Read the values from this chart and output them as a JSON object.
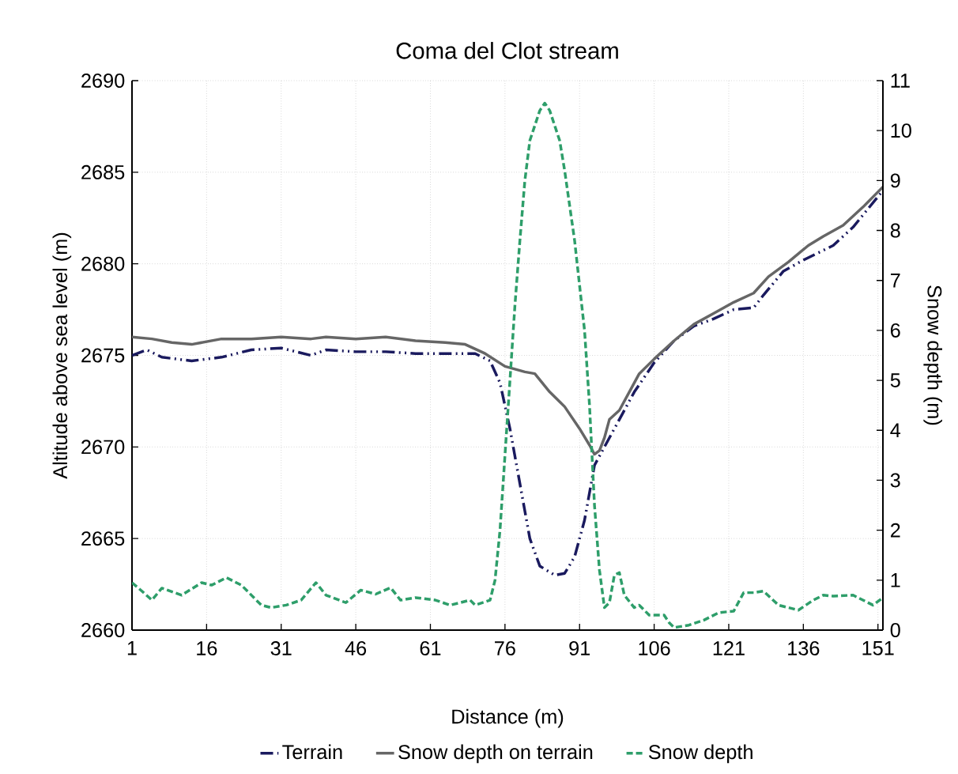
{
  "chart_data": {
    "type": "line",
    "title": "Coma del Clot stream",
    "xlabel": "Distance (m)",
    "ylabel": "Altitude above sea level (m)",
    "y2label": "Snow depth (m)",
    "xlim": [
      1,
      152
    ],
    "xticks": [
      1,
      16,
      31,
      46,
      61,
      76,
      91,
      106,
      121,
      136,
      151
    ],
    "ylim": [
      2660,
      2690
    ],
    "yticks": [
      2660,
      2665,
      2670,
      2675,
      2680,
      2685,
      2690
    ],
    "y2lim": [
      0,
      11
    ],
    "y2ticks": [
      0,
      1,
      2,
      3,
      4,
      5,
      6,
      7,
      8,
      9,
      10,
      11
    ],
    "grid": true,
    "legend": "bottom",
    "marker": "none",
    "series": [
      {
        "name": "Terrain",
        "color": "#1a1a5e",
        "line_style": "dashdotdotted",
        "x": [
          1,
          4,
          7,
          13,
          19,
          25,
          31,
          37,
          40,
          46,
          52,
          58,
          64,
          70,
          73,
          75,
          77,
          79,
          81,
          83,
          86,
          88,
          90,
          92,
          94,
          96,
          99,
          102,
          106,
          110,
          114,
          118,
          122,
          126,
          128,
          132,
          136,
          142,
          146,
          149,
          152
        ],
        "values": [
          2675.0,
          2675.3,
          2674.9,
          2674.7,
          2674.9,
          2675.3,
          2675.4,
          2675.0,
          2675.3,
          2675.2,
          2675.2,
          2675.1,
          2675.1,
          2675.1,
          2674.7,
          2673.5,
          2671.0,
          2668.0,
          2665.0,
          2663.5,
          2663.0,
          2663.1,
          2664.0,
          2666.0,
          2669.0,
          2670.0,
          2671.5,
          2673.0,
          2674.6,
          2675.8,
          2676.6,
          2677.0,
          2677.5,
          2677.6,
          2678.3,
          2679.6,
          2680.2,
          2681.0,
          2682.0,
          2683.0,
          2684.0
        ]
      },
      {
        "name": "Snow depth on terrain",
        "color": "#666666",
        "line_style": "solid",
        "x": [
          1,
          5,
          9,
          13,
          19,
          25,
          31,
          37,
          40,
          46,
          52,
          58,
          64,
          68,
          72,
          76,
          80,
          82,
          85,
          88,
          91,
          93,
          94,
          95,
          96,
          97,
          99,
          101,
          103,
          106,
          110,
          114,
          118,
          122,
          126,
          129,
          133,
          137,
          140,
          144,
          148,
          152
        ],
        "values": [
          2676.0,
          2675.9,
          2675.7,
          2675.6,
          2675.9,
          2675.9,
          2676.0,
          2675.9,
          2676.0,
          2675.9,
          2676.0,
          2675.8,
          2675.7,
          2675.6,
          2675.1,
          2674.4,
          2674.1,
          2674.0,
          2673.0,
          2672.2,
          2671.0,
          2670.1,
          2669.6,
          2669.8,
          2670.5,
          2671.5,
          2672.0,
          2673.0,
          2674.0,
          2674.8,
          2675.8,
          2676.7,
          2677.3,
          2677.9,
          2678.4,
          2679.3,
          2680.1,
          2681.0,
          2681.5,
          2682.1,
          2683.1,
          2684.2
        ]
      },
      {
        "name": "Snow depth",
        "color": "#2e9e6a",
        "line_style": "dashed",
        "axis": "y2",
        "x": [
          1,
          3,
          5,
          7,
          11,
          15,
          17,
          20,
          23,
          27,
          29,
          32,
          35,
          38,
          40,
          44,
          47,
          50,
          53,
          55,
          58,
          62,
          65,
          69,
          70,
          73,
          74,
          75,
          76,
          77,
          78,
          79,
          80,
          81,
          83,
          84,
          85,
          87,
          88,
          90,
          92,
          93,
          94,
          95,
          96,
          97,
          98,
          99,
          100,
          102,
          103,
          105,
          108,
          109,
          110,
          113,
          116,
          119,
          122,
          124,
          126,
          128,
          131,
          135,
          138,
          140,
          142,
          146,
          150,
          152
        ],
        "values": [
          0.95,
          0.78,
          0.6,
          0.84,
          0.7,
          0.95,
          0.9,
          1.05,
          0.9,
          0.5,
          0.45,
          0.5,
          0.6,
          0.95,
          0.7,
          0.55,
          0.8,
          0.72,
          0.85,
          0.6,
          0.65,
          0.6,
          0.5,
          0.6,
          0.5,
          0.6,
          1.0,
          2.0,
          3.5,
          5.0,
          6.5,
          7.8,
          9.0,
          9.8,
          10.4,
          10.55,
          10.4,
          9.8,
          9.2,
          7.8,
          6.0,
          4.5,
          2.5,
          1.2,
          0.45,
          0.55,
          1.1,
          1.15,
          0.7,
          0.45,
          0.5,
          0.3,
          0.3,
          0.15,
          0.05,
          0.1,
          0.2,
          0.35,
          0.38,
          0.75,
          0.75,
          0.78,
          0.5,
          0.4,
          0.6,
          0.7,
          0.68,
          0.7,
          0.5,
          0.65
        ]
      }
    ]
  }
}
